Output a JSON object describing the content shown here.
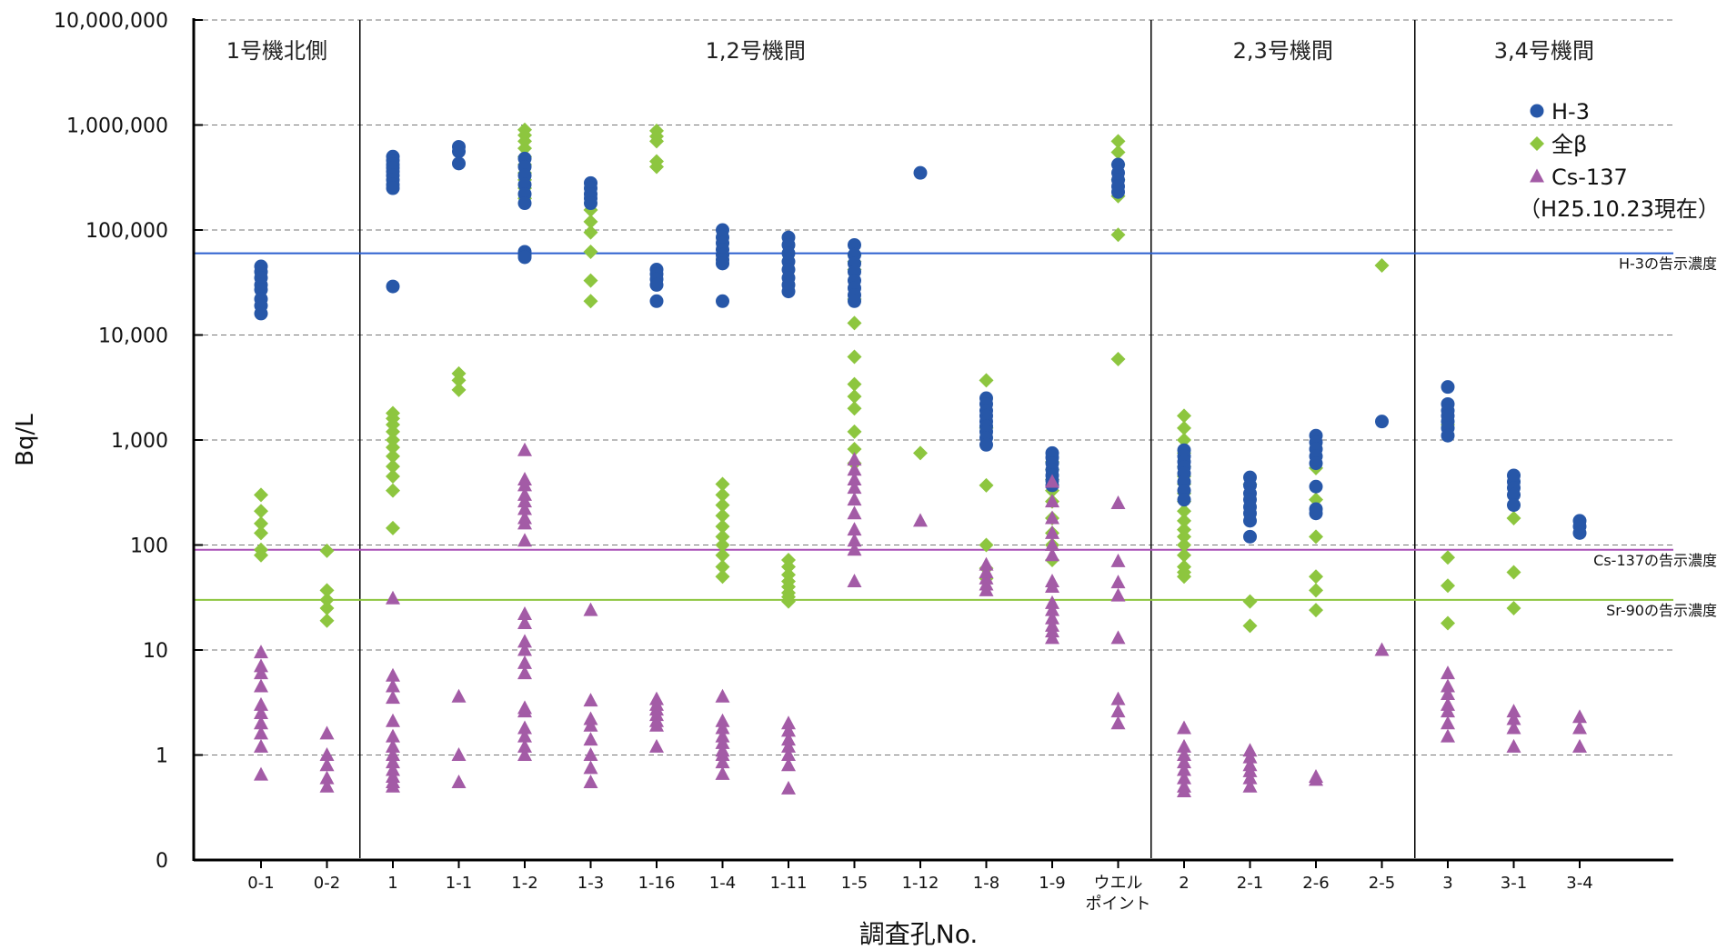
{
  "chart_data": {
    "type": "scatter",
    "yscale": "log",
    "y_axis_label": "Bq/L",
    "x_axis_label": "調査孔No.",
    "y_ticks": [
      "0",
      "1",
      "10",
      "100",
      "1,000",
      "10,000",
      "100,000",
      "1,000,000",
      "10,000,000"
    ],
    "grid": "horizontal dashed",
    "categories": [
      "0-1",
      "0-2",
      "1",
      "1-1",
      "1-2",
      "1-3",
      "1-16",
      "1-4",
      "1-11",
      "1-5",
      "1-12",
      "1-8",
      "1-9",
      "ウエル\nポイント",
      "2",
      "2-1",
      "2-6",
      "2-5",
      "3",
      "3-1",
      "3-4"
    ],
    "sections": [
      {
        "label": "1号機北側",
        "from": 0,
        "to": 1
      },
      {
        "label": "1,2号機間",
        "from": 2,
        "to": 13
      },
      {
        "label": "2,3号機間",
        "from": 14,
        "to": 17
      },
      {
        "label": "3,4号機間",
        "from": 18,
        "to": 20
      }
    ],
    "legend": {
      "position": "top-right",
      "entries": [
        "H-3",
        "全β",
        "Cs-137"
      ],
      "note": "（H25.10.23現在）"
    },
    "series": [
      {
        "name": "H-3",
        "marker": "circle",
        "color": "#2757a8",
        "points": {
          "0-1": [
            45000,
            40000,
            35000,
            30000,
            27000,
            22000,
            19000,
            16000
          ],
          "1": [
            500000,
            460000,
            420000,
            390000,
            360000,
            330000,
            300000,
            270000,
            250000,
            29000
          ],
          "1-1": [
            620000,
            560000,
            430000
          ],
          "1-2": [
            480000,
            400000,
            330000,
            270000,
            220000,
            180000,
            62000,
            58000,
            55000
          ],
          "1-3": [
            280000,
            250000,
            220000,
            200000,
            180000
          ],
          "1-16": [
            42000,
            38000,
            34000,
            30000,
            21000
          ],
          "1-4": [
            100000,
            85000,
            75000,
            65000,
            58000,
            52000,
            48000,
            21000
          ],
          "1-11": [
            85000,
            72000,
            60000,
            50000,
            42000,
            35000,
            30000,
            26000
          ],
          "1-5": [
            72000,
            58000,
            48000,
            40000,
            33000,
            28000,
            24000,
            21000
          ],
          "1-12": [
            350000
          ],
          "1-8": [
            2500,
            2200,
            1900,
            1700,
            1500,
            1350,
            1200,
            1050,
            900
          ],
          "1-9": [
            750,
            680,
            600,
            520,
            460,
            410,
            370
          ],
          "ウエル\nポイント": [
            420000,
            350000,
            300000,
            260000,
            230000
          ],
          "2": [
            800,
            700,
            620,
            550,
            480,
            400,
            330,
            270
          ],
          "2-1": [
            440,
            370,
            310,
            270,
            230,
            200,
            170,
            120
          ],
          "2-6": [
            1100,
            950,
            820,
            700,
            600,
            360,
            220,
            200
          ],
          "2-5": [
            1500
          ],
          "3": [
            3200,
            2200,
            1900,
            1700,
            1500,
            1300,
            1100
          ],
          "3-1": [
            460,
            400,
            350,
            300,
            240
          ],
          "3-4": [
            170,
            150,
            130
          ]
        }
      },
      {
        "name": "全β",
        "marker": "diamond",
        "color": "#8dc63f",
        "points": {
          "0-1": [
            300,
            210,
            160,
            130,
            90,
            80
          ],
          "0-2": [
            88,
            37,
            30,
            25,
            19
          ],
          "1": [
            1800,
            1600,
            1400,
            1200,
            1000,
            850,
            700,
            560,
            450,
            330,
            145
          ],
          "1-1": [
            4300,
            3700,
            3000
          ],
          "1-2": [
            900000,
            800000,
            700000,
            600000,
            500000,
            420000,
            350000,
            300000,
            250000,
            200000
          ],
          "1-3": [
            155000,
            120000,
            95000,
            62000,
            33000,
            21000
          ],
          "1-16": [
            880000,
            780000,
            700000,
            450000,
            400000
          ],
          "1-4": [
            380,
            300,
            240,
            190,
            150,
            120,
            100,
            80,
            62,
            50
          ],
          "1-11": [
            72,
            62,
            52,
            45,
            40,
            35,
            32,
            29
          ],
          "1-5": [
            58000,
            50000,
            42000,
            22000,
            13000,
            6200,
            3400,
            2600,
            2000,
            1200,
            820,
            600
          ],
          "1-12": [
            750
          ],
          "1-8": [
            3700,
            1300,
            370,
            100,
            60,
            48
          ],
          "1-9": [
            620,
            520,
            420,
            330,
            260,
            180,
            130,
            100,
            72
          ],
          "ウエル\nポイント": [
            700000,
            550000,
            420000,
            300000,
            210000,
            90000,
            5900
          ],
          "2": [
            1700,
            1300,
            1000,
            750,
            560,
            450,
            380,
            310,
            260,
            210,
            170,
            140,
            120,
            100,
            80,
            62,
            55,
            50
          ],
          "2-1": [
            380,
            29,
            17
          ],
          "2-6": [
            540,
            270,
            120,
            50,
            37,
            24
          ],
          "2-5": [
            46000
          ],
          "3": [
            1400,
            76,
            41,
            18
          ],
          "3-1": [
            180,
            55,
            25
          ]
        }
      },
      {
        "name": "Cs-137",
        "marker": "triangle",
        "color": "#a35ba6",
        "points": {
          "0-1": [
            9.5,
            7,
            6,
            4.5,
            3,
            2.5,
            2,
            1.6,
            1.2,
            0.65
          ],
          "0-2": [
            1.6,
            1,
            0.8,
            0.6,
            0.5
          ],
          "1": [
            31,
            5.7,
            4.5,
            3.5,
            2.1,
            1.5,
            1.2,
            1,
            0.85,
            0.72,
            0.62,
            0.55,
            0.5
          ],
          "1-1": [
            3.6,
            1,
            0.55
          ],
          "1-2": [
            22,
            18,
            12,
            10,
            7.5,
            6,
            2.8,
            2.6,
            1.8,
            1.5,
            1.2,
            1,
            800,
            420,
            370,
            300,
            260,
            220,
            180,
            160,
            110
          ],
          "1-3": [
            24,
            3.3,
            2.2,
            1.9,
            1.4,
            1,
            0.75,
            0.55
          ],
          "1-16": [
            3.4,
            3,
            2.7,
            2.4,
            2.1,
            1.9,
            1.2
          ],
          "1-4": [
            3.6,
            2.1,
            1.8,
            1.5,
            1.3,
            1.1,
            1,
            0.85,
            0.66
          ],
          "1-11": [
            2,
            1.7,
            1.4,
            1.2,
            1,
            0.8,
            0.48
          ],
          "1-5": [
            650,
            520,
            420,
            350,
            270,
            200,
            140,
            110,
            90,
            45
          ],
          "1-12": [
            170
          ],
          "1-8": [
            65,
            55,
            48,
            42,
            37
          ],
          "1-9": [
            400,
            260,
            180,
            130,
            100,
            80,
            45,
            40,
            28,
            24,
            20,
            17,
            15,
            13
          ],
          "ウエル\nポイント": [
            250,
            70,
            44,
            33,
            13,
            3.4,
            2.6,
            2
          ],
          "2": [
            1.8,
            1.2,
            1,
            0.85,
            0.72,
            0.6,
            0.5,
            0.45
          ],
          "2-1": [
            1.1,
            0.95,
            0.8,
            0.7,
            0.6,
            0.5
          ],
          "2-6": [
            0.62,
            0.58
          ],
          "2-5": [
            10
          ],
          "3": [
            6,
            4.5,
            3.8,
            3,
            2.6,
            2,
            1.5
          ],
          "3-1": [
            2.6,
            2.2,
            1.8,
            1.2
          ],
          "3-4": [
            2.3,
            1.8,
            1.2
          ]
        }
      }
    ],
    "reference_lines": [
      {
        "label": "H-3の告示濃度",
        "value": 60000,
        "color": "#2b5fcf"
      },
      {
        "label": "Cs-137の告示濃度",
        "value": 90,
        "color": "#a94fb5"
      },
      {
        "label": "Sr-90の告示濃度",
        "value": 30,
        "color": "#8dc63f"
      }
    ]
  }
}
